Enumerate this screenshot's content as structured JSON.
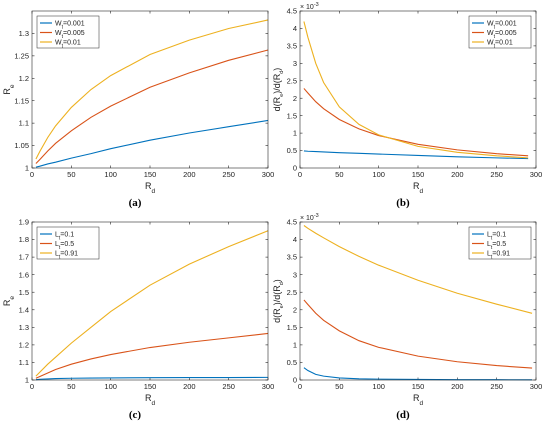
{
  "chart_data": [
    {
      "type": "line",
      "panel_label": "(a)",
      "xlabel": "R",
      "xlabel_sub": "d",
      "ylabel": "R",
      "ylabel_sub": "e",
      "exponent": "",
      "xlim": [
        0,
        300
      ],
      "ylim": [
        1,
        1.35
      ],
      "xticks": [
        0,
        50,
        100,
        150,
        200,
        250,
        300
      ],
      "yticks": [
        1,
        1.05,
        1.1,
        1.15,
        1.2,
        1.25,
        1.3
      ],
      "ytick_labels": [
        "1",
        "1.05",
        "1.1",
        "1.15",
        "1.2",
        "1.25",
        "1.3"
      ],
      "legend_position": "top-left",
      "x": [
        5,
        10,
        20,
        30,
        50,
        75,
        100,
        150,
        200,
        250,
        300
      ],
      "series": [
        {
          "name": "W",
          "name_sub": "t",
          "name_suffix": "=0.001",
          "color": "#0072BD",
          "values": [
            1.002,
            1.004,
            1.009,
            1.013,
            1.022,
            1.032,
            1.043,
            1.062,
            1.078,
            1.092,
            1.106
          ]
        },
        {
          "name": "W",
          "name_sub": "t",
          "name_suffix": "=0.005",
          "color": "#D95319",
          "values": [
            1.01,
            1.019,
            1.038,
            1.055,
            1.083,
            1.113,
            1.138,
            1.18,
            1.212,
            1.24,
            1.263
          ]
        },
        {
          "name": "W",
          "name_sub": "t",
          "name_suffix": "=0.01",
          "color": "#EDB120",
          "values": [
            1.02,
            1.037,
            1.068,
            1.094,
            1.135,
            1.175,
            1.206,
            1.253,
            1.285,
            1.311,
            1.33
          ]
        }
      ]
    },
    {
      "type": "line",
      "panel_label": "(b)",
      "xlabel": "R",
      "xlabel_sub": "d",
      "ylabel": "d(R",
      "ylabel_sub": "e",
      "ylabel_mid": ")/d(R",
      "ylabel_sub2": "d",
      "ylabel_end": ")",
      "exponent": "× 10",
      "exponent_power": "-3",
      "xlim": [
        0,
        300
      ],
      "ylim": [
        0,
        4.5
      ],
      "xticks": [
        0,
        50,
        100,
        150,
        200,
        250,
        300
      ],
      "yticks": [
        0,
        0.5,
        1,
        1.5,
        2,
        2.5,
        3,
        3.5,
        4,
        4.5
      ],
      "ytick_labels": [
        "0",
        "0.5",
        "1",
        "1.5",
        "2",
        "2.5",
        "3",
        "3.5",
        "4",
        "4.5"
      ],
      "legend_position": "top-right",
      "x": [
        5,
        10,
        20,
        30,
        50,
        75,
        100,
        150,
        200,
        250,
        290
      ],
      "series": [
        {
          "name": "W",
          "name_sub": "t",
          "name_suffix": "=0.001",
          "color": "#0072BD",
          "values": [
            0.49,
            0.48,
            0.47,
            0.46,
            0.44,
            0.42,
            0.4,
            0.36,
            0.32,
            0.29,
            0.27
          ]
        },
        {
          "name": "W",
          "name_sub": "t",
          "name_suffix": "=0.005",
          "color": "#D95319",
          "values": [
            2.28,
            2.15,
            1.9,
            1.7,
            1.39,
            1.12,
            0.93,
            0.68,
            0.52,
            0.41,
            0.35
          ]
        },
        {
          "name": "W",
          "name_sub": "t",
          "name_suffix": "=0.01",
          "color": "#EDB120",
          "values": [
            4.2,
            3.75,
            3.0,
            2.45,
            1.75,
            1.25,
            0.95,
            0.62,
            0.45,
            0.35,
            0.29
          ]
        }
      ]
    },
    {
      "type": "line",
      "panel_label": "(c)",
      "xlabel": "R",
      "xlabel_sub": "d",
      "ylabel": "R",
      "ylabel_sub": "e",
      "exponent": "",
      "xlim": [
        0,
        300
      ],
      "ylim": [
        1,
        1.9
      ],
      "xticks": [
        0,
        50,
        100,
        150,
        200,
        250,
        300
      ],
      "yticks": [
        1,
        1.1,
        1.2,
        1.3,
        1.4,
        1.5,
        1.6,
        1.7,
        1.8,
        1.9
      ],
      "ytick_labels": [
        "1",
        "1.1",
        "1.2",
        "1.3",
        "1.4",
        "1.5",
        "1.6",
        "1.7",
        "1.8",
        "1.9"
      ],
      "legend_position": "top-left",
      "x": [
        5,
        10,
        20,
        30,
        50,
        75,
        100,
        150,
        200,
        250,
        300
      ],
      "series": [
        {
          "name": "L",
          "name_sub": "t",
          "name_suffix": "=0.1",
          "color": "#0072BD",
          "values": [
            1.002,
            1.004,
            1.006,
            1.008,
            1.01,
            1.011,
            1.012,
            1.013,
            1.014,
            1.014,
            1.015
          ]
        },
        {
          "name": "L",
          "name_sub": "t",
          "name_suffix": "=0.5",
          "color": "#D95319",
          "values": [
            1.01,
            1.02,
            1.04,
            1.06,
            1.09,
            1.12,
            1.145,
            1.185,
            1.215,
            1.24,
            1.265
          ]
        },
        {
          "name": "L",
          "name_sub": "t",
          "name_suffix": "=0.91",
          "color": "#EDB120",
          "values": [
            1.022,
            1.045,
            1.09,
            1.13,
            1.21,
            1.3,
            1.39,
            1.54,
            1.66,
            1.76,
            1.85
          ]
        }
      ]
    },
    {
      "type": "line",
      "panel_label": "(d)",
      "xlabel": "R",
      "xlabel_sub": "d",
      "ylabel": "d(R",
      "ylabel_sub": "e",
      "ylabel_mid": ")/d(R",
      "ylabel_sub2": "d",
      "ylabel_end": ")",
      "exponent": "× 10",
      "exponent_power": "-3",
      "xlim": [
        0,
        300
      ],
      "ylim": [
        0,
        4.5
      ],
      "xticks": [
        0,
        50,
        100,
        150,
        200,
        250,
        300
      ],
      "yticks": [
        0,
        0.5,
        1,
        1.5,
        2,
        2.5,
        3,
        3.5,
        4,
        4.5
      ],
      "ytick_labels": [
        "0",
        "0.5",
        "1",
        "1.5",
        "2",
        "2.5",
        "3",
        "3.5",
        "4",
        "4.5"
      ],
      "legend_position": "top-right",
      "x": [
        5,
        10,
        20,
        30,
        50,
        75,
        100,
        150,
        200,
        250,
        295
      ],
      "series": [
        {
          "name": "L",
          "name_sub": "t",
          "name_suffix": "=0.1",
          "color": "#0072BD",
          "values": [
            0.35,
            0.27,
            0.16,
            0.11,
            0.06,
            0.035,
            0.025,
            0.015,
            0.01,
            0.008,
            0.006
          ]
        },
        {
          "name": "L",
          "name_sub": "t",
          "name_suffix": "=0.5",
          "color": "#D95319",
          "values": [
            2.28,
            2.15,
            1.9,
            1.7,
            1.4,
            1.12,
            0.93,
            0.68,
            0.52,
            0.41,
            0.34
          ]
        },
        {
          "name": "L",
          "name_sub": "t",
          "name_suffix": "=0.91",
          "color": "#EDB120",
          "values": [
            4.4,
            4.32,
            4.18,
            4.05,
            3.8,
            3.52,
            3.27,
            2.84,
            2.47,
            2.16,
            1.9
          ]
        }
      ]
    }
  ]
}
